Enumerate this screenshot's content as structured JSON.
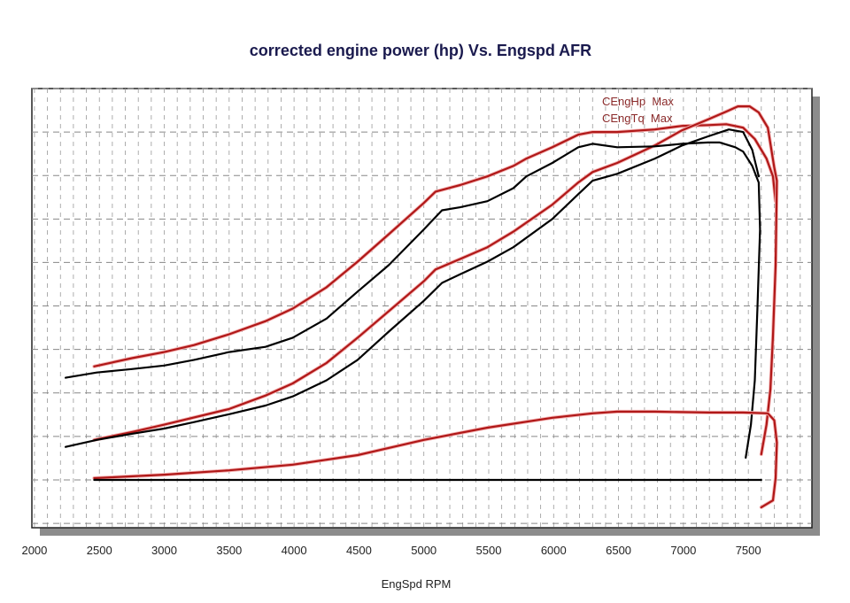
{
  "chart_data": {
    "type": "line",
    "title": "corrected engine power (hp) Vs. Engspd AFR",
    "xlabel": "EngSpd RPM",
    "ylabel": "",
    "xlim": [
      1980,
      7990
    ],
    "ylim": [
      -1.1,
      9.0
    ],
    "x_ticks": [
      2000,
      2500,
      3000,
      3500,
      4000,
      4500,
      5000,
      5500,
      6000,
      6500,
      7000,
      7500
    ],
    "x_minor_step": 100,
    "y_grid_step": 1,
    "grid": true,
    "legend": {
      "placement": "top-right",
      "entries": [
        "CEngHp  Max",
        "CEngTq  Max"
      ]
    },
    "colors": {
      "red": "#b01818",
      "black": "#000000",
      "title": "#1a1a4e",
      "legend": "#8b2a2a",
      "shadow": "#8c8c8c"
    },
    "series": [
      {
        "name": "CEngHp Max (red upper)",
        "color": "red",
        "x": [
          2460,
          2750,
          3000,
          3230,
          3500,
          3780,
          3990,
          4250,
          4490,
          4730,
          5000,
          5090,
          5280,
          5490,
          5690,
          5790,
          5990,
          6190,
          6300,
          6490,
          6780,
          6990,
          7190,
          7330,
          7460,
          7550,
          7640,
          7690,
          7710
        ],
        "y": [
          2.61,
          2.8,
          2.94,
          3.1,
          3.35,
          3.65,
          3.94,
          4.43,
          5.02,
          5.65,
          6.37,
          6.63,
          6.78,
          6.98,
          7.22,
          7.39,
          7.65,
          7.94,
          8.0,
          8.0,
          8.06,
          8.14,
          8.16,
          8.18,
          8.1,
          7.84,
          7.39,
          6.98,
          6.4
        ]
      },
      {
        "name": "CEngTq Max (red lower)",
        "color": "red",
        "x": [
          2460,
          2750,
          3000,
          3500,
          3780,
          3990,
          4250,
          4490,
          4730,
          5000,
          5090,
          5280,
          5490,
          5690,
          5990,
          6190,
          6300,
          6490,
          6780,
          6990,
          7190,
          7330,
          7420,
          7510,
          7580,
          7650,
          7700,
          7720,
          7710,
          7690,
          7670,
          7640,
          7600
        ],
        "y": [
          0.92,
          1.1,
          1.27,
          1.63,
          1.94,
          2.22,
          2.69,
          3.27,
          3.88,
          4.57,
          4.84,
          5.08,
          5.35,
          5.71,
          6.33,
          6.84,
          7.08,
          7.29,
          7.69,
          8.04,
          8.29,
          8.47,
          8.59,
          8.59,
          8.45,
          8.1,
          7.18,
          6.88,
          4.94,
          3.31,
          2.08,
          1.27,
          0.59
        ]
      },
      {
        "name": "black upper",
        "color": "black",
        "x": [
          2240,
          2480,
          2750,
          3000,
          3230,
          3500,
          3780,
          3990,
          4250,
          4490,
          4730,
          5000,
          5140,
          5280,
          5490,
          5690,
          5790,
          5990,
          6190,
          6300,
          6490,
          6780,
          6990,
          7190,
          7280,
          7400,
          7460,
          7530,
          7580,
          7590,
          7570,
          7550,
          7520,
          7480
        ],
        "y": [
          2.35,
          2.47,
          2.55,
          2.63,
          2.76,
          2.94,
          3.06,
          3.27,
          3.71,
          4.33,
          4.94,
          5.76,
          6.2,
          6.27,
          6.41,
          6.71,
          6.98,
          7.29,
          7.65,
          7.73,
          7.65,
          7.67,
          7.73,
          7.76,
          7.76,
          7.65,
          7.55,
          7.22,
          6.84,
          5.76,
          3.92,
          2.29,
          1.27,
          0.51
        ]
      },
      {
        "name": "black lower",
        "color": "black",
        "x": [
          2240,
          2480,
          2750,
          3000,
          3230,
          3500,
          3780,
          3990,
          4250,
          4490,
          4730,
          5000,
          5140,
          5280,
          5490,
          5690,
          5990,
          6190,
          6300,
          6490,
          6780,
          6990,
          7190,
          7350,
          7460,
          7530,
          7580
        ],
        "y": [
          0.76,
          0.92,
          1.06,
          1.18,
          1.33,
          1.51,
          1.71,
          1.92,
          2.29,
          2.76,
          3.41,
          4.12,
          4.53,
          4.73,
          5.02,
          5.35,
          6.0,
          6.57,
          6.88,
          7.04,
          7.39,
          7.69,
          7.9,
          8.06,
          8.0,
          7.59,
          6.98
        ]
      },
      {
        "name": "AFR (red bottom)",
        "color": "red",
        "x": [
          2460,
          3000,
          3500,
          3990,
          4490,
          5000,
          5490,
          5990,
          6300,
          6490,
          6780,
          7190,
          7460,
          7650,
          7700,
          7720,
          7710,
          7690,
          7600
        ],
        "y": [
          0.04,
          0.12,
          0.22,
          0.35,
          0.57,
          0.92,
          1.2,
          1.43,
          1.53,
          1.57,
          1.57,
          1.55,
          1.55,
          1.53,
          1.37,
          0.86,
          0.04,
          -0.47,
          -0.63
        ]
      },
      {
        "name": "baseline (black)",
        "color": "black",
        "x": [
          2460,
          7600
        ],
        "y": [
          0,
          0
        ]
      }
    ]
  }
}
